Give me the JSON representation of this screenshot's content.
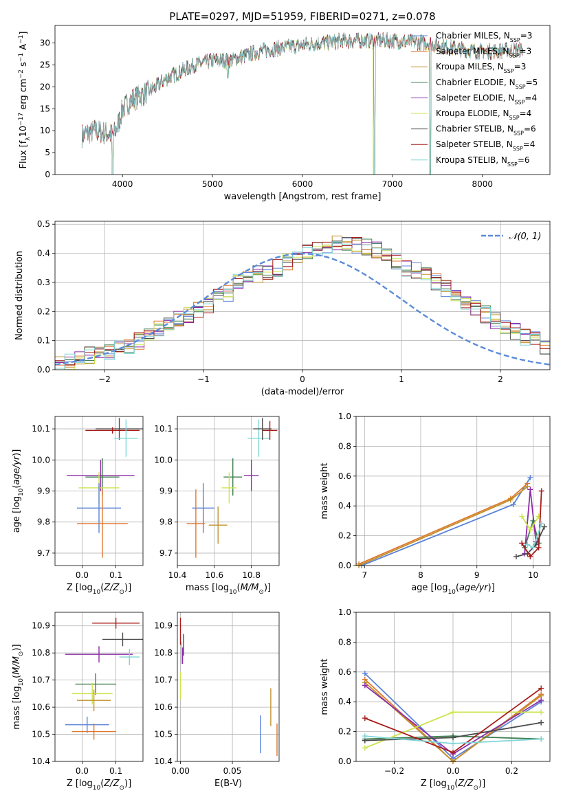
{
  "figure_title": "PLATE=0297, MJD=51959, FIBERID=0271, z=0.078",
  "colors": {
    "Chabrier MILES": "#5b83d9",
    "Salpeter MILES": "#e0772e",
    "Kroupa MILES": "#c0902a",
    "Chabrier ELODIE": "#3f7f50",
    "Salpeter ELODIE": "#8e2ca8",
    "Kroupa ELODIE": "#cde34e",
    "Chabrier STELIB": "#4a4a4a",
    "Salpeter STELIB": "#a81c1c",
    "Kroupa STELIB": "#7fd6d8"
  },
  "chart_data": [
    {
      "id": "spectrum",
      "type": "line",
      "xlabel": "wavelength [Angstrom, rest frame]",
      "ylabel": "Flux [f_λ10^-17 erg cm^-2 s^-1 A^-1]",
      "xlim": [
        3250,
        8750
      ],
      "ylim": [
        0,
        34
      ],
      "xticks": [
        4000,
        5000,
        6000,
        7000,
        8000
      ],
      "yticks": [
        0,
        5,
        10,
        15,
        20,
        25,
        30
      ],
      "grid": false,
      "legend_position": "right",
      "data": {
        "wavelength_range": [
          3550,
          8450
        ],
        "anchors": [
          [
            3550,
            9
          ],
          [
            3700,
            10
          ],
          [
            3900,
            9
          ],
          [
            3960,
            12
          ],
          [
            4000,
            15
          ],
          [
            4100,
            17
          ],
          [
            4300,
            19
          ],
          [
            4500,
            22
          ],
          [
            4800,
            25
          ],
          [
            5000,
            26
          ],
          [
            5200,
            26
          ],
          [
            5500,
            28
          ],
          [
            5800,
            29
          ],
          [
            6000,
            29.5
          ],
          [
            6200,
            30
          ],
          [
            6500,
            30.5
          ],
          [
            7000,
            30.5
          ],
          [
            7400,
            30
          ],
          [
            7600,
            29
          ],
          [
            8000,
            28
          ],
          [
            8450,
            28.5
          ]
        ],
        "dips": [
          [
            3890,
            0
          ],
          [
            5170,
            22
          ],
          [
            6800,
            0
          ],
          [
            7420,
            0
          ]
        ]
      },
      "series": [
        {
          "name": "Chabrier MILES",
          "legend": "Chabrier MILES, N_SSP=3",
          "label_parts": [
            "Chabrier MILES, N",
            "SSP",
            "=3"
          ]
        },
        {
          "name": "Salpeter MILES",
          "legend": "Salpeter MILES, N_SSP=3",
          "label_parts": [
            "Salpeter MILES, N",
            "SSP",
            "=3"
          ]
        },
        {
          "name": "Kroupa MILES",
          "legend": "Kroupa MILES, N_SSP=3",
          "label_parts": [
            "Kroupa MILES, N",
            "SSP",
            "=3"
          ]
        },
        {
          "name": "Chabrier ELODIE",
          "legend": "Chabrier ELODIE, N_SSP=5",
          "label_parts": [
            "Chabrier ELODIE, N",
            "SSP",
            "=5"
          ]
        },
        {
          "name": "Salpeter ELODIE",
          "legend": "Salpeter ELODIE, N_SSP=4",
          "label_parts": [
            "Salpeter ELODIE, N",
            "SSP",
            "=4"
          ]
        },
        {
          "name": "Kroupa ELODIE",
          "legend": "Kroupa ELODIE, N_SSP=4",
          "label_parts": [
            "Kroupa ELODIE, N",
            "SSP",
            "=4"
          ]
        },
        {
          "name": "Chabrier STELIB",
          "legend": "Chabrier STELIB, N_SSP=6",
          "label_parts": [
            "Chabrier STELIB, N",
            "SSP",
            "=6"
          ]
        },
        {
          "name": "Salpeter STELIB",
          "legend": "Salpeter STELIB, N_SSP=4",
          "label_parts": [
            "Salpeter STELIB, N",
            "SSP",
            "=4"
          ]
        },
        {
          "name": "Kroupa STELIB",
          "legend": "Kroupa STELIB, N_SSP=6",
          "label_parts": [
            "Kroupa STELIB, N",
            "SSP",
            "=6"
          ]
        }
      ]
    },
    {
      "id": "residuals",
      "type": "histogram",
      "xlabel": "(data-model)/error",
      "ylabel": "Normed distribution",
      "xlim": [
        -2.5,
        2.5
      ],
      "ylim": [
        0,
        0.51
      ],
      "xticks": [
        -2,
        -1,
        0,
        1,
        2
      ],
      "yticks": [
        0.0,
        0.1,
        0.2,
        0.3,
        0.4,
        0.5
      ],
      "grid": true,
      "legend_position": "top-right",
      "legend": "N(0,1)",
      "bin_edges_start": -2.5,
      "bin_width": 0.1,
      "values": [
        0.02,
        0.03,
        0.04,
        0.05,
        0.05,
        0.06,
        0.07,
        0.08,
        0.1,
        0.12,
        0.14,
        0.16,
        0.18,
        0.19,
        0.21,
        0.22,
        0.25,
        0.26,
        0.3,
        0.32,
        0.33,
        0.34,
        0.35,
        0.37,
        0.38,
        0.41,
        0.42,
        0.42,
        0.43,
        0.44,
        0.43,
        0.42,
        0.41,
        0.39,
        0.37,
        0.35,
        0.34,
        0.32,
        0.3,
        0.28,
        0.26,
        0.23,
        0.21,
        0.19,
        0.17,
        0.15,
        0.13,
        0.11,
        0.1,
        0.08
      ]
    },
    {
      "id": "age_vs_Z",
      "type": "errorbar",
      "xlabel": "Z [log10(Z/Z_⊙)]",
      "ylabel": "age [log10(age/yr)]",
      "xlim": [
        -0.08,
        0.18
      ],
      "ylim": [
        9.66,
        10.14
      ],
      "xticks": [
        0.0,
        0.1
      ],
      "yticks": [
        9.7,
        9.8,
        9.9,
        10.0,
        10.1
      ],
      "grid": true,
      "points": [
        {
          "name": "Chabrier STELIB",
          "x": 0.11,
          "xerr": 0.07,
          "y": 10.1,
          "yerr": 0.035
        },
        {
          "name": "Salpeter STELIB",
          "x": 0.09,
          "xerr": 0.08,
          "y": 10.095,
          "yerr": 0.01
        },
        {
          "name": "Kroupa STELIB",
          "x": 0.13,
          "xerr": 0.035,
          "y": 10.07,
          "yerr": 0.06
        },
        {
          "name": "Salpeter ELODIE",
          "x": 0.055,
          "xerr": 0.1,
          "y": 9.95,
          "yerr": 0.05
        },
        {
          "name": "Chabrier ELODIE",
          "x": 0.06,
          "xerr": 0.05,
          "y": 9.945,
          "yerr": 0.06
        },
        {
          "name": "Kroupa ELODIE",
          "x": 0.05,
          "xerr": 0.06,
          "y": 9.91,
          "yerr": 0.05
        },
        {
          "name": "Chabrier MILES",
          "x": 0.05,
          "xerr": 0.065,
          "y": 9.845,
          "yerr": 0.08
        },
        {
          "name": "Salpeter MILES",
          "x": 0.06,
          "xerr": 0.075,
          "y": 9.795,
          "yerr": 0.11
        }
      ]
    },
    {
      "id": "age_vs_mass",
      "type": "errorbar",
      "xlabel": "mass [log10(M/M_⊙)]",
      "ylabel": "",
      "xlim": [
        10.4,
        10.95
      ],
      "ylim": [
        9.66,
        10.14
      ],
      "xticks": [
        10.4,
        10.6,
        10.8
      ],
      "yticks": [
        9.7,
        9.8,
        9.9,
        10.0,
        10.1
      ],
      "grid": true,
      "points": [
        {
          "name": "Kroupa STELIB",
          "x": 10.84,
          "xerr": 0.06,
          "y": 10.07,
          "yerr": 0.06
        },
        {
          "name": "Chabrier STELIB",
          "x": 10.86,
          "xerr": 0.05,
          "y": 10.1,
          "yerr": 0.035
        },
        {
          "name": "Salpeter STELIB",
          "x": 10.9,
          "xerr": 0.04,
          "y": 10.095,
          "yerr": 0.03
        },
        {
          "name": "Salpeter ELODIE",
          "x": 10.8,
          "xerr": 0.04,
          "y": 9.95,
          "yerr": 0.05
        },
        {
          "name": "Chabrier ELODIE",
          "x": 10.7,
          "xerr": 0.05,
          "y": 9.945,
          "yerr": 0.06
        },
        {
          "name": "Kroupa ELODIE",
          "x": 10.68,
          "xerr": 0.04,
          "y": 9.91,
          "yerr": 0.05
        },
        {
          "name": "Chabrier MILES",
          "x": 10.54,
          "xerr": 0.06,
          "y": 9.845,
          "yerr": 0.08
        },
        {
          "name": "Salpeter MILES",
          "x": 10.5,
          "xerr": 0.05,
          "y": 9.795,
          "yerr": 0.11
        },
        {
          "name": "Kroupa MILES",
          "x": 10.62,
          "xerr": 0.05,
          "y": 9.79,
          "yerr": 0.06
        }
      ]
    },
    {
      "id": "mass_weight_vs_age",
      "type": "line",
      "xlabel": "age [log10(age/yr)]",
      "ylabel": "mass weight",
      "xlim": [
        6.85,
        10.3
      ],
      "ylim": [
        0,
        1.0
      ],
      "xticks": [
        7,
        8,
        9,
        10
      ],
      "yticks": [
        0.0,
        0.2,
        0.4,
        0.6,
        0.8,
        1.0
      ],
      "grid": true,
      "series": [
        {
          "name": "Chabrier MILES",
          "x": [
            6.95,
            9.65,
            9.95
          ],
          "y": [
            0.0,
            0.41,
            0.59
          ]
        },
        {
          "name": "Salpeter MILES",
          "x": [
            6.9,
            9.6,
            9.9
          ],
          "y": [
            0.01,
            0.45,
            0.55
          ]
        },
        {
          "name": "Kroupa MILES",
          "x": [
            6.9,
            9.6,
            9.9
          ],
          "y": [
            0.0,
            0.44,
            0.53
          ]
        },
        {
          "name": "Chabrier ELODIE",
          "x": [
            9.85,
            10.0,
            10.1
          ],
          "y": [
            0.12,
            0.3,
            0.15
          ]
        },
        {
          "name": "Salpeter ELODIE",
          "x": [
            9.85,
            9.95,
            10.05
          ],
          "y": [
            0.08,
            0.51,
            0.16
          ]
        },
        {
          "name": "Kroupa ELODIE",
          "x": [
            9.8,
            9.95,
            10.1
          ],
          "y": [
            0.33,
            0.24,
            0.33
          ]
        },
        {
          "name": "Chabrier STELIB",
          "x": [
            9.7,
            9.9,
            10.05,
            10.2
          ],
          "y": [
            0.06,
            0.08,
            0.14,
            0.26
          ]
        },
        {
          "name": "Salpeter STELIB",
          "x": [
            9.8,
            9.95,
            10.1,
            10.15
          ],
          "y": [
            0.15,
            0.06,
            0.12,
            0.5
          ]
        },
        {
          "name": "Kroupa STELIB",
          "x": [
            9.9,
            10.0,
            10.15
          ],
          "y": [
            0.14,
            0.12,
            0.28
          ]
        }
      ]
    },
    {
      "id": "mass_vs_Z",
      "type": "errorbar",
      "xlabel": "Z [log10(Z/Z_⊙)]",
      "ylabel": "mass [log10(M/M_⊙)]",
      "xlim": [
        -0.08,
        0.18
      ],
      "ylim": [
        10.4,
        10.95
      ],
      "xticks": [
        0.0,
        0.1
      ],
      "yticks": [
        10.4,
        10.5,
        10.6,
        10.7,
        10.8,
        10.9
      ],
      "grid": true,
      "points": [
        {
          "name": "Salpeter STELIB",
          "x": 0.1,
          "xerr": 0.07,
          "y": 10.91,
          "yerr": 0.02
        },
        {
          "name": "Chabrier STELIB",
          "x": 0.12,
          "xerr": 0.06,
          "y": 10.85,
          "yerr": 0.025
        },
        {
          "name": "Salpeter ELODIE",
          "x": 0.05,
          "xerr": 0.1,
          "y": 10.795,
          "yerr": 0.03
        },
        {
          "name": "Kroupa STELIB",
          "x": 0.14,
          "xerr": 0.03,
          "y": 10.785,
          "yerr": 0.03
        },
        {
          "name": "Chabrier ELODIE",
          "x": 0.04,
          "xerr": 0.06,
          "y": 10.685,
          "yerr": 0.04
        },
        {
          "name": "Kroupa ELODIE",
          "x": 0.03,
          "xerr": 0.06,
          "y": 10.65,
          "yerr": 0.04
        },
        {
          "name": "Kroupa MILES",
          "x": 0.035,
          "xerr": 0.05,
          "y": 10.625,
          "yerr": 0.04
        },
        {
          "name": "Chabrier MILES",
          "x": 0.015,
          "xerr": 0.065,
          "y": 10.535,
          "yerr": 0.03
        },
        {
          "name": "Salpeter MILES",
          "x": 0.035,
          "xerr": 0.065,
          "y": 10.51,
          "yerr": 0.03
        }
      ]
    },
    {
      "id": "mass_vs_ebv",
      "type": "errorbar",
      "xlabel": "E(B-V)",
      "ylabel": "",
      "xlim": [
        -0.003,
        0.095
      ],
      "ylim": [
        10.4,
        10.95
      ],
      "xticks": [
        0.0,
        0.05
      ],
      "yticks": [
        10.4,
        10.5,
        10.6,
        10.7,
        10.8,
        10.9
      ],
      "grid": true,
      "points": [
        {
          "name": "Salpeter STELIB",
          "x": 0.0,
          "y": 10.88,
          "yerr": 0.05
        },
        {
          "name": "Chabrier STELIB",
          "x": 0.003,
          "y": 10.83,
          "yerr": 0.04
        },
        {
          "name": "Kroupa STELIB",
          "x": 0.001,
          "y": 10.8,
          "yerr": 0.04
        },
        {
          "name": "Salpeter ELODIE",
          "x": 0.002,
          "y": 10.79,
          "yerr": 0.03
        },
        {
          "name": "Kroupa ELODIE",
          "x": 0.0,
          "y": 10.68,
          "yerr": 0.05
        },
        {
          "name": "Kroupa MILES",
          "x": 0.087,
          "y": 10.6,
          "yerr": 0.07
        },
        {
          "name": "Chabrier MILES",
          "x": 0.077,
          "y": 10.5,
          "yerr": 0.07
        },
        {
          "name": "Salpeter MILES",
          "x": 0.093,
          "y": 10.48,
          "yerr": 0.06
        }
      ]
    },
    {
      "id": "mass_weight_vs_Z",
      "type": "line",
      "xlabel": "Z [log10(Z/Z_⊙)]",
      "ylabel": "mass weight",
      "xlim": [
        -0.33,
        0.33
      ],
      "ylim": [
        0,
        1.0
      ],
      "xticks": [
        -0.2,
        0.0,
        0.2
      ],
      "yticks": [
        0.0,
        0.2,
        0.4,
        0.6,
        0.8,
        1.0
      ],
      "grid": true,
      "series": [
        {
          "name": "Chabrier MILES",
          "x": [
            -0.3,
            0.0,
            0.3
          ],
          "y": [
            0.59,
            0.02,
            0.4
          ]
        },
        {
          "name": "Salpeter MILES",
          "x": [
            -0.3,
            0.0,
            0.3
          ],
          "y": [
            0.55,
            0.0,
            0.45
          ]
        },
        {
          "name": "Kroupa MILES",
          "x": [
            -0.3,
            0.0,
            0.3
          ],
          "y": [
            0.53,
            0.0,
            0.44
          ]
        },
        {
          "name": "Chabrier ELODIE",
          "x": [
            -0.3,
            0.0,
            0.3
          ],
          "y": [
            0.15,
            0.17,
            0.15
          ]
        },
        {
          "name": "Salpeter ELODIE",
          "x": [
            -0.3,
            0.0,
            0.3
          ],
          "y": [
            0.51,
            0.05,
            0.41
          ]
        },
        {
          "name": "Kroupa ELODIE",
          "x": [
            -0.3,
            0.0,
            0.3
          ],
          "y": [
            0.09,
            0.33,
            0.33
          ]
        },
        {
          "name": "Chabrier STELIB",
          "x": [
            -0.3,
            0.0,
            0.3
          ],
          "y": [
            0.14,
            0.16,
            0.26
          ]
        },
        {
          "name": "Salpeter STELIB",
          "x": [
            -0.3,
            0.0,
            0.3
          ],
          "y": [
            0.29,
            0.06,
            0.49
          ]
        },
        {
          "name": "Kroupa STELIB",
          "x": [
            -0.3,
            0.0,
            0.3
          ],
          "y": [
            0.17,
            0.12,
            0.15
          ]
        }
      ]
    }
  ]
}
